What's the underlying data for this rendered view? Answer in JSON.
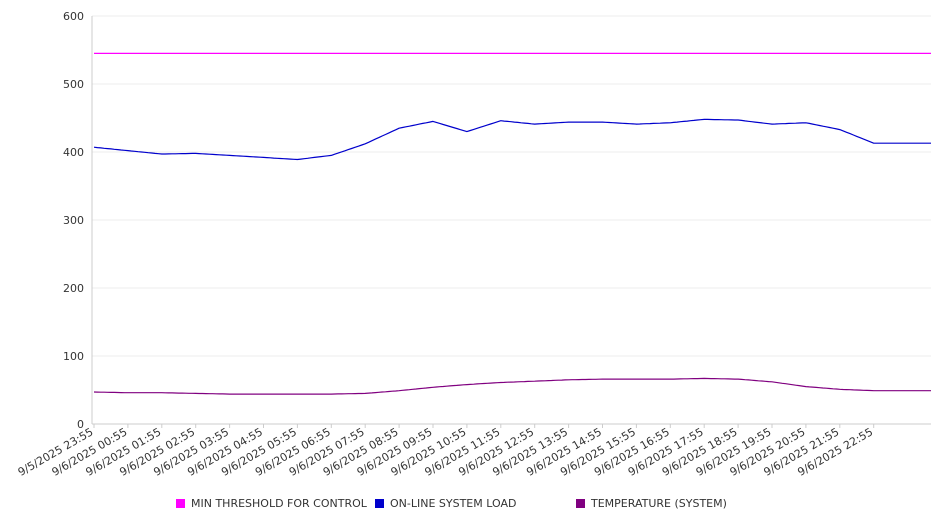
{
  "chart_data": {
    "type": "line",
    "title": "",
    "xlabel": "",
    "ylabel": "",
    "ylim": [
      0,
      600
    ],
    "yticks": [
      "0",
      "100",
      "200",
      "300",
      "400",
      "500",
      "600"
    ],
    "grid": true,
    "legend_position": "bottom",
    "x": [
      "9/5/2025 23:55",
      "9/6/2025 00:55",
      "9/6/2025 01:55",
      "9/6/2025 02:55",
      "9/6/2025 03:55",
      "9/6/2025 04:55",
      "9/6/2025 05:55",
      "9/6/2025 06:55",
      "9/6/2025 07:55",
      "9/6/2025 08:55",
      "9/6/2025 09:55",
      "9/6/2025 10:55",
      "9/6/2025 11:55",
      "9/6/2025 12:55",
      "9/6/2025 13:55",
      "9/6/2025 14:55",
      "9/6/2025 15:55",
      "9/6/2025 16:55",
      "9/6/2025 17:55",
      "9/6/2025 18:55",
      "9/6/2025 19:55",
      "9/6/2025 20:55",
      "9/6/2025 21:55",
      "9/6/2025 22:55"
    ],
    "series": [
      {
        "name": "MIN THRESHOLD FOR CONTROL",
        "color": "#ff00ff",
        "values": [
          545,
          545,
          545,
          545,
          545,
          545,
          545,
          545,
          545,
          545,
          545,
          545,
          545,
          545,
          545,
          545,
          545,
          545,
          545,
          545,
          545,
          545,
          545,
          545
        ]
      },
      {
        "name": "ON-LINE SYSTEM LOAD",
        "color": "#0000cc",
        "values": [
          407,
          402,
          397,
          398,
          395,
          392,
          389,
          395,
          412,
          435,
          445,
          430,
          446,
          441,
          444,
          444,
          441,
          443,
          448,
          447,
          441,
          443,
          433,
          413
        ]
      },
      {
        "name": "TEMPERATURE (SYSTEM)",
        "color": "#800080",
        "values": [
          47,
          46,
          46,
          45,
          44,
          44,
          44,
          44,
          45,
          49,
          54,
          58,
          61,
          63,
          65,
          66,
          66,
          66,
          67,
          66,
          62,
          55,
          51,
          49
        ]
      }
    ]
  }
}
